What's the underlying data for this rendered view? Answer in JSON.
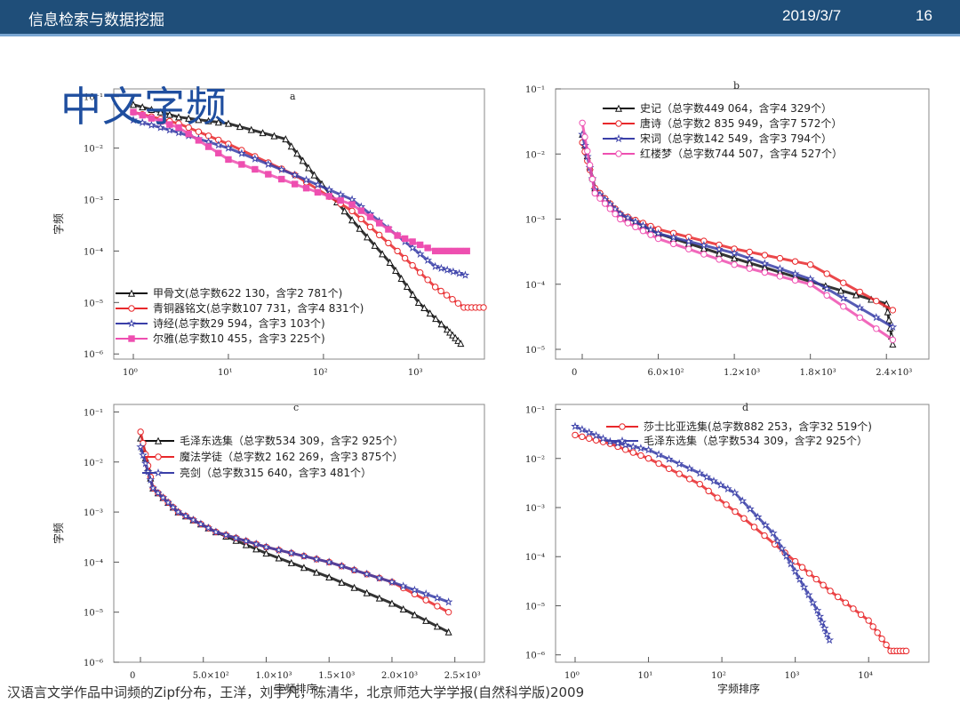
{
  "header": {
    "course": "信息检索与数据挖掘",
    "date": "2019/3/7",
    "page": "16"
  },
  "slide_title": "中文字频",
  "caption": "汉语言文学作品中词频的Zipf分布，王洋，刘宇凡，陈清华，北京师范大学学报(自然科学版)2009",
  "colors": {
    "black": "#111111",
    "red": "#e8282b",
    "blue": "#3a3fa8",
    "pink": "#ee4fb0",
    "header": "#1f4e79"
  },
  "chart_data": [
    {
      "panel": "a",
      "type": "line",
      "ylabel": "字频",
      "xlabel": "",
      "xscale": "log",
      "yscale": "log",
      "xticks": [
        "10⁰",
        "10¹",
        "10²",
        "10³"
      ],
      "yticks": [
        "10⁻¹",
        "10⁻²",
        "10⁻³",
        "10⁻⁴",
        "10⁻⁵",
        "10⁻⁶"
      ],
      "legend_position": "bottom-left",
      "series": [
        {
          "name": "甲骨文(总字数622 130，含字2 781个)",
          "color": "#111111",
          "marker": "triangle",
          "points": [
            [
              1,
              0.07
            ],
            [
              3,
              0.04
            ],
            [
              10,
              0.03
            ],
            [
              40,
              0.015
            ],
            [
              80,
              0.003
            ],
            [
              200,
              0.0004
            ],
            [
              500,
              6e-05
            ],
            [
              1000,
              1e-05
            ],
            [
              2000,
              3e-06
            ],
            [
              2781,
              1.6e-06
            ]
          ]
        },
        {
          "name": "青铜器铭文(总字数107 731，含字4 831个)",
          "color": "#e8282b",
          "marker": "circle",
          "points": [
            [
              1,
              0.05
            ],
            [
              3,
              0.03
            ],
            [
              10,
              0.012
            ],
            [
              50,
              0.003
            ],
            [
              200,
              0.0006
            ],
            [
              600,
              0.0001
            ],
            [
              1500,
              2e-05
            ],
            [
              3000,
              8e-06
            ],
            [
              4831,
              8e-06
            ]
          ]
        },
        {
          "name": "诗经(总字数29 594，含字3 103个)",
          "color": "#3a3fa8",
          "marker": "star",
          "points": [
            [
              1,
              0.035
            ],
            [
              3,
              0.02
            ],
            [
              10,
              0.01
            ],
            [
              50,
              0.003
            ],
            [
              200,
              0.001
            ],
            [
              600,
              0.0002
            ],
            [
              1500,
              5e-05
            ],
            [
              3103,
              3.4e-05
            ]
          ]
        },
        {
          "name": "尔雅(总字数10 455，含字3 225个)",
          "color": "#ee4fb0",
          "marker": "square",
          "points": [
            [
              1,
              0.05
            ],
            [
              3,
              0.025
            ],
            [
              10,
              0.006
            ],
            [
              50,
              0.002
            ],
            [
              200,
              0.0008
            ],
            [
              600,
              0.0002
            ],
            [
              1500,
              0.0001
            ],
            [
              3225,
              0.0001
            ]
          ]
        }
      ]
    },
    {
      "panel": "b",
      "type": "line",
      "ylabel": "",
      "xlabel": "",
      "xscale": "linear",
      "yscale": "log",
      "xlim": [
        0,
        2700
      ],
      "xticks": [
        "0",
        "6.0×10²",
        "1.2×10³",
        "1.8×10³",
        "2.4×10³"
      ],
      "yticks": [
        "10⁻¹",
        "10⁻²",
        "10⁻³",
        "10⁻⁴",
        "10⁻⁵"
      ],
      "legend_position": "top-right",
      "series": [
        {
          "name": "史记（总字数449 064，含字4 329个）",
          "color": "#111111",
          "marker": "triangle",
          "points": [
            [
              1,
              0.02
            ],
            [
              100,
              0.003
            ],
            [
              300,
              0.0012
            ],
            [
              600,
              0.0006
            ],
            [
              1200,
              0.00025
            ],
            [
              1800,
              0.00011
            ],
            [
              2400,
              5e-05
            ],
            [
              2450,
              1.2e-05
            ]
          ]
        },
        {
          "name": "唐诗（总字数2 835 949，含字7 572个）",
          "color": "#e8282b",
          "marker": "circle",
          "points": [
            [
              1,
              0.015
            ],
            [
              100,
              0.003
            ],
            [
              300,
              0.0012
            ],
            [
              600,
              0.0007
            ],
            [
              1200,
              0.00035
            ],
            [
              1800,
              0.0002
            ],
            [
              2450,
              4e-05
            ]
          ]
        },
        {
          "name": "宋词（总字数142 549，含字3 794个）",
          "color": "#3a3fa8",
          "marker": "star",
          "points": [
            [
              1,
              0.02
            ],
            [
              100,
              0.0028
            ],
            [
              300,
              0.0012
            ],
            [
              600,
              0.0006
            ],
            [
              1200,
              0.0003
            ],
            [
              1800,
              0.00012
            ],
            [
              2450,
              2.2e-05
            ]
          ]
        },
        {
          "name": "红楼梦（总字数744 507，含字4 527个）",
          "color": "#ee4fb0",
          "marker": "circle",
          "points": [
            [
              1,
              0.03
            ],
            [
              100,
              0.0025
            ],
            [
              300,
              0.001
            ],
            [
              600,
              0.0005
            ],
            [
              1200,
              0.0002
            ],
            [
              1800,
              0.0001
            ],
            [
              2450,
              1.4e-05
            ]
          ]
        }
      ]
    },
    {
      "panel": "c",
      "type": "line",
      "ylabel": "字频",
      "xlabel": "字频排序",
      "xscale": "linear",
      "yscale": "log",
      "xlim": [
        0,
        2700
      ],
      "xticks": [
        "0",
        "5.0×10²",
        "1.0×10³",
        "1.5×10³",
        "2.0×10³",
        "2.5×10³"
      ],
      "yticks": [
        "10⁻¹",
        "10⁻²",
        "10⁻³",
        "10⁻⁴",
        "10⁻⁵",
        "10⁻⁶"
      ],
      "legend_position": "top",
      "series": [
        {
          "name": "毛泽东选集（总字数534 309，含字2 925个）",
          "color": "#111111",
          "marker": "triangle",
          "points": [
            [
              1,
              0.03
            ],
            [
              100,
              0.003
            ],
            [
              300,
              0.001
            ],
            [
              600,
              0.0004
            ],
            [
              1000,
              0.00015
            ],
            [
              1500,
              5e-05
            ],
            [
              2000,
              1.5e-05
            ],
            [
              2450,
              4e-06
            ]
          ]
        },
        {
          "name": "魔法学徒（总字数2 162 269，含字3 875个）",
          "color": "#e8282b",
          "marker": "circle",
          "points": [
            [
              1,
              0.04
            ],
            [
              100,
              0.003
            ],
            [
              300,
              0.001
            ],
            [
              600,
              0.0004
            ],
            [
              1000,
              0.0002
            ],
            [
              1500,
              0.0001
            ],
            [
              2000,
              4e-05
            ],
            [
              2450,
              1e-05
            ]
          ]
        },
        {
          "name": "亮剑（总字数315 640，含字3 481个）",
          "color": "#3a3fa8",
          "marker": "star",
          "points": [
            [
              1,
              0.02
            ],
            [
              100,
              0.003
            ],
            [
              300,
              0.001
            ],
            [
              600,
              0.0004
            ],
            [
              1000,
              0.0002
            ],
            [
              1500,
              0.0001
            ],
            [
              2000,
              4e-05
            ],
            [
              2450,
              1.6e-05
            ]
          ]
        }
      ]
    },
    {
      "panel": "d",
      "type": "line",
      "ylabel": "",
      "xlabel": "字频排序",
      "xscale": "log",
      "yscale": "log",
      "xticks": [
        "10⁰",
        "10¹",
        "10²",
        "10³",
        "10⁴"
      ],
      "yticks": [
        "10⁻¹",
        "10⁻²",
        "10⁻³",
        "10⁻⁴",
        "10⁻⁵",
        "10⁻⁶"
      ],
      "legend_position": "top-right",
      "series": [
        {
          "name": "莎士比亚选集(总字数882 253，含字32 519个)",
          "color": "#e8282b",
          "marker": "circle",
          "points": [
            [
              1,
              0.03
            ],
            [
              3,
              0.02
            ],
            [
              10,
              0.01
            ],
            [
              50,
              0.003
            ],
            [
              200,
              0.0006
            ],
            [
              1000,
              8e-05
            ],
            [
              3000,
              2e-05
            ],
            [
              10000,
              5e-06
            ],
            [
              20000,
              1.2e-06
            ],
            [
              32519,
              1.2e-06
            ]
          ]
        },
        {
          "name": "毛泽东选集（总字数534 309，含字2 925个）",
          "color": "#3a3fa8",
          "marker": "star",
          "points": [
            [
              1,
              0.045
            ],
            [
              3,
              0.022
            ],
            [
              10,
              0.015
            ],
            [
              50,
              0.005
            ],
            [
              150,
              0.002
            ],
            [
              500,
              0.0003
            ],
            [
              1000,
              5e-05
            ],
            [
              2000,
              8e-06
            ],
            [
              2925,
              2e-06
            ]
          ]
        }
      ]
    }
  ]
}
